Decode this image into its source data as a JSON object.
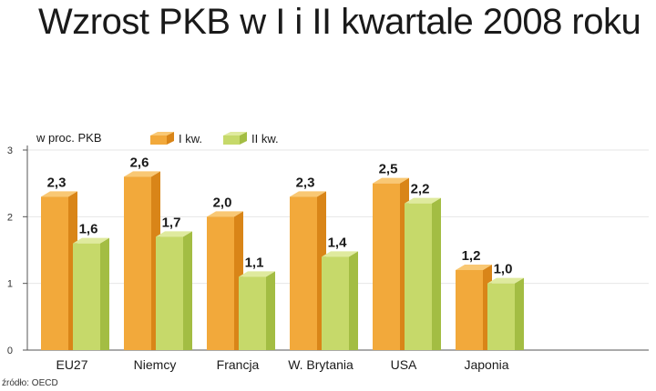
{
  "title": "Wzrost PKB w I i II kwartale 2008 roku",
  "source": "źródło: OECD",
  "colors": {
    "front1": "#f2a93b",
    "side1": "#d98518",
    "top1": "#f9c874",
    "front2": "#c6d96a",
    "side2": "#a3bd43",
    "top2": "#dfea9e"
  },
  "chart_data": {
    "type": "bar",
    "title": "Wzrost PKB w I i II kwartale 2008 roku",
    "ylabel": "w proc. PKB",
    "ylim": [
      0,
      3
    ],
    "yticks": [
      "0",
      "1",
      "2",
      "3"
    ],
    "categories": [
      "EU27",
      "Niemcy",
      "Francja",
      "W. Brytania",
      "USA",
      "Japonia"
    ],
    "series": [
      {
        "name": "I kw.",
        "values": [
          2.3,
          2.6,
          2.0,
          2.3,
          2.5,
          1.2
        ],
        "labels": [
          "2,3",
          "2,6",
          "2,0",
          "2,3",
          "2,5",
          "1,2"
        ]
      },
      {
        "name": "II kw.",
        "values": [
          1.6,
          1.7,
          1.1,
          1.4,
          2.2,
          1.0
        ],
        "labels": [
          "1,6",
          "1,7",
          "1,1",
          "1,4",
          "2,2",
          "1,0"
        ]
      }
    ]
  }
}
